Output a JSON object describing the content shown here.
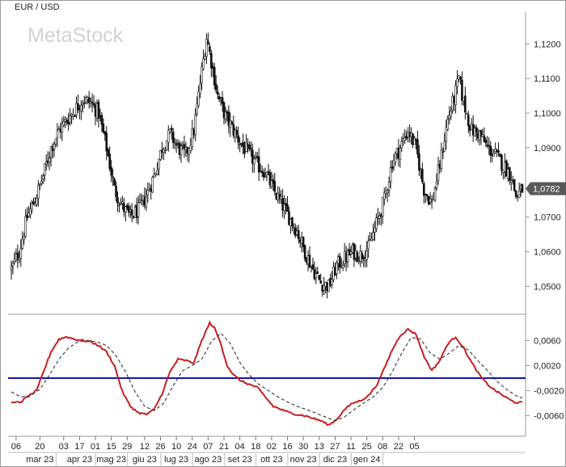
{
  "chart_data": [
    {
      "type": "candlestick",
      "title": "EUR / USD",
      "watermark": "MetaStock",
      "ylim": [
        1.0445,
        1.128
      ],
      "y_ticks": [
        {
          "value": 1.12,
          "label": "1,1200"
        },
        {
          "value": 1.11,
          "label": "1,1100"
        },
        {
          "value": 1.1,
          "label": "1,1000"
        },
        {
          "value": 1.09,
          "label": "1,0900"
        },
        {
          "value": 1.07,
          "label": "1,0700"
        },
        {
          "value": 1.06,
          "label": "1,0600"
        },
        {
          "value": 1.05,
          "label": "1,0500"
        }
      ],
      "last_price": {
        "value": 1.0782,
        "label": "1,0782",
        "color": "#5a5a5a"
      },
      "approx_close_path": [
        {
          "x": 0,
          "y": 1.055
        },
        {
          "x": 5,
          "y": 1.06
        },
        {
          "x": 10,
          "y": 1.07
        },
        {
          "x": 15,
          "y": 1.075
        },
        {
          "x": 20,
          "y": 1.082
        },
        {
          "x": 25,
          "y": 1.09
        },
        {
          "x": 30,
          "y": 1.095
        },
        {
          "x": 35,
          "y": 1.098
        },
        {
          "x": 40,
          "y": 1.101
        },
        {
          "x": 45,
          "y": 1.104
        },
        {
          "x": 50,
          "y": 1.103
        },
        {
          "x": 55,
          "y": 1.1
        },
        {
          "x": 60,
          "y": 1.09
        },
        {
          "x": 65,
          "y": 1.078
        },
        {
          "x": 70,
          "y": 1.073
        },
        {
          "x": 75,
          "y": 1.07
        },
        {
          "x": 80,
          "y": 1.072
        },
        {
          "x": 85,
          "y": 1.076
        },
        {
          "x": 90,
          "y": 1.082
        },
        {
          "x": 95,
          "y": 1.09
        },
        {
          "x": 100,
          "y": 1.094
        },
        {
          "x": 105,
          "y": 1.09
        },
        {
          "x": 110,
          "y": 1.088
        },
        {
          "x": 115,
          "y": 1.095
        },
        {
          "x": 120,
          "y": 1.112
        },
        {
          "x": 123,
          "y": 1.122
        },
        {
          "x": 126,
          "y": 1.115
        },
        {
          "x": 130,
          "y": 1.105
        },
        {
          "x": 135,
          "y": 1.099
        },
        {
          "x": 140,
          "y": 1.095
        },
        {
          "x": 145,
          "y": 1.091
        },
        {
          "x": 150,
          "y": 1.088
        },
        {
          "x": 155,
          "y": 1.085
        },
        {
          "x": 160,
          "y": 1.083
        },
        {
          "x": 165,
          "y": 1.078
        },
        {
          "x": 170,
          "y": 1.074
        },
        {
          "x": 175,
          "y": 1.07
        },
        {
          "x": 180,
          "y": 1.066
        },
        {
          "x": 185,
          "y": 1.06
        },
        {
          "x": 190,
          "y": 1.055
        },
        {
          "x": 195,
          "y": 1.051
        },
        {
          "x": 200,
          "y": 1.05
        },
        {
          "x": 205,
          "y": 1.056
        },
        {
          "x": 210,
          "y": 1.058
        },
        {
          "x": 215,
          "y": 1.06
        },
        {
          "x": 220,
          "y": 1.059
        },
        {
          "x": 225,
          "y": 1.061
        },
        {
          "x": 230,
          "y": 1.068
        },
        {
          "x": 235,
          "y": 1.075
        },
        {
          "x": 240,
          "y": 1.086
        },
        {
          "x": 245,
          "y": 1.09
        },
        {
          "x": 250,
          "y": 1.095
        },
        {
          "x": 255,
          "y": 1.09
        },
        {
          "x": 260,
          "y": 1.078
        },
        {
          "x": 265,
          "y": 1.074
        },
        {
          "x": 270,
          "y": 1.085
        },
        {
          "x": 275,
          "y": 1.098
        },
        {
          "x": 280,
          "y": 1.106
        },
        {
          "x": 282,
          "y": 1.11
        },
        {
          "x": 285,
          "y": 1.103
        },
        {
          "x": 290,
          "y": 1.095
        },
        {
          "x": 295,
          "y": 1.094
        },
        {
          "x": 300,
          "y": 1.09
        },
        {
          "x": 305,
          "y": 1.088
        },
        {
          "x": 310,
          "y": 1.085
        },
        {
          "x": 315,
          "y": 1.082
        },
        {
          "x": 318,
          "y": 1.076
        },
        {
          "x": 322,
          "y": 1.078
        }
      ]
    },
    {
      "type": "line",
      "y_ticks": [
        {
          "value": 0.006,
          "label": "0,0060"
        },
        {
          "value": 0.002,
          "label": "0,0020"
        },
        {
          "value": -0.002,
          "label": "-0,0020"
        },
        {
          "value": -0.006,
          "label": "-0,0060"
        }
      ],
      "ylim": [
        -0.0089,
        0.0098
      ],
      "zero_line": {
        "value": 0,
        "color": "#1414b4"
      },
      "series": [
        {
          "color": "#c81e1e",
          "style": "solid",
          "points": [
            {
              "x": 0,
              "y": -0.004
            },
            {
              "x": 6,
              "y": -0.0038
            },
            {
              "x": 10,
              "y": -0.003
            },
            {
              "x": 16,
              "y": -0.002
            },
            {
              "x": 20,
              "y": 0.0008
            },
            {
              "x": 25,
              "y": 0.0042
            },
            {
              "x": 30,
              "y": 0.0062
            },
            {
              "x": 35,
              "y": 0.0066
            },
            {
              "x": 40,
              "y": 0.0062
            },
            {
              "x": 45,
              "y": 0.006
            },
            {
              "x": 50,
              "y": 0.0058
            },
            {
              "x": 55,
              "y": 0.0052
            },
            {
              "x": 60,
              "y": 0.0042
            },
            {
              "x": 65,
              "y": 0.002
            },
            {
              "x": 70,
              "y": -0.0022
            },
            {
              "x": 75,
              "y": -0.0045
            },
            {
              "x": 80,
              "y": -0.0055
            },
            {
              "x": 85,
              "y": -0.0058
            },
            {
              "x": 90,
              "y": -0.005
            },
            {
              "x": 95,
              "y": -0.0025
            },
            {
              "x": 100,
              "y": 0.001
            },
            {
              "x": 105,
              "y": 0.003
            },
            {
              "x": 110,
              "y": 0.0028
            },
            {
              "x": 115,
              "y": 0.0024
            },
            {
              "x": 120,
              "y": 0.006
            },
            {
              "x": 125,
              "y": 0.0088
            },
            {
              "x": 128,
              "y": 0.008
            },
            {
              "x": 132,
              "y": 0.0055
            },
            {
              "x": 136,
              "y": 0.002
            },
            {
              "x": 140,
              "y": 0.0005
            },
            {
              "x": 145,
              "y": -0.0005
            },
            {
              "x": 150,
              "y": -0.001
            },
            {
              "x": 155,
              "y": -0.0015
            },
            {
              "x": 160,
              "y": -0.003
            },
            {
              "x": 165,
              "y": -0.0045
            },
            {
              "x": 170,
              "y": -0.005
            },
            {
              "x": 175,
              "y": -0.0055
            },
            {
              "x": 180,
              "y": -0.0058
            },
            {
              "x": 185,
              "y": -0.006
            },
            {
              "x": 190,
              "y": -0.0064
            },
            {
              "x": 195,
              "y": -0.0068
            },
            {
              "x": 200,
              "y": -0.0075
            },
            {
              "x": 205,
              "y": -0.0066
            },
            {
              "x": 210,
              "y": -0.005
            },
            {
              "x": 215,
              "y": -0.004
            },
            {
              "x": 220,
              "y": -0.0036
            },
            {
              "x": 225,
              "y": -0.0028
            },
            {
              "x": 230,
              "y": -0.0012
            },
            {
              "x": 235,
              "y": 0.0015
            },
            {
              "x": 240,
              "y": 0.0045
            },
            {
              "x": 245,
              "y": 0.0068
            },
            {
              "x": 250,
              "y": 0.0078
            },
            {
              "x": 255,
              "y": 0.007
            },
            {
              "x": 260,
              "y": 0.0035
            },
            {
              "x": 265,
              "y": 0.0012
            },
            {
              "x": 270,
              "y": 0.0028
            },
            {
              "x": 275,
              "y": 0.0055
            },
            {
              "x": 280,
              "y": 0.0066
            },
            {
              "x": 285,
              "y": 0.0048
            },
            {
              "x": 290,
              "y": 0.0025
            },
            {
              "x": 295,
              "y": 0.0005
            },
            {
              "x": 300,
              "y": -0.001
            },
            {
              "x": 305,
              "y": -0.002
            },
            {
              "x": 310,
              "y": -0.0028
            },
            {
              "x": 315,
              "y": -0.0036
            },
            {
              "x": 318,
              "y": -0.0039
            },
            {
              "x": 322,
              "y": -0.0039
            }
          ]
        },
        {
          "color": "#222222",
          "style": "dashed",
          "points": [
            {
              "x": 0,
              "y": -0.0022
            },
            {
              "x": 6,
              "y": -0.003
            },
            {
              "x": 12,
              "y": -0.0028
            },
            {
              "x": 18,
              "y": -0.0018
            },
            {
              "x": 24,
              "y": 0.0005
            },
            {
              "x": 30,
              "y": 0.003
            },
            {
              "x": 36,
              "y": 0.0048
            },
            {
              "x": 42,
              "y": 0.0058
            },
            {
              "x": 48,
              "y": 0.006
            },
            {
              "x": 54,
              "y": 0.0058
            },
            {
              "x": 60,
              "y": 0.0052
            },
            {
              "x": 66,
              "y": 0.0036
            },
            {
              "x": 72,
              "y": 0.001
            },
            {
              "x": 78,
              "y": -0.0022
            },
            {
              "x": 84,
              "y": -0.0045
            },
            {
              "x": 90,
              "y": -0.0052
            },
            {
              "x": 96,
              "y": -0.004
            },
            {
              "x": 102,
              "y": -0.0012
            },
            {
              "x": 108,
              "y": 0.0012
            },
            {
              "x": 114,
              "y": 0.002
            },
            {
              "x": 120,
              "y": 0.003
            },
            {
              "x": 126,
              "y": 0.0058
            },
            {
              "x": 132,
              "y": 0.0072
            },
            {
              "x": 138,
              "y": 0.0055
            },
            {
              "x": 144,
              "y": 0.0025
            },
            {
              "x": 150,
              "y": 0.0005
            },
            {
              "x": 156,
              "y": -0.001
            },
            {
              "x": 162,
              "y": -0.002
            },
            {
              "x": 168,
              "y": -0.003
            },
            {
              "x": 174,
              "y": -0.0038
            },
            {
              "x": 180,
              "y": -0.0045
            },
            {
              "x": 186,
              "y": -0.005
            },
            {
              "x": 192,
              "y": -0.0056
            },
            {
              "x": 198,
              "y": -0.0062
            },
            {
              "x": 204,
              "y": -0.0068
            },
            {
              "x": 210,
              "y": -0.0062
            },
            {
              "x": 216,
              "y": -0.005
            },
            {
              "x": 222,
              "y": -0.004
            },
            {
              "x": 228,
              "y": -0.003
            },
            {
              "x": 234,
              "y": -0.0015
            },
            {
              "x": 240,
              "y": 0.001
            },
            {
              "x": 246,
              "y": 0.004
            },
            {
              "x": 252,
              "y": 0.0065
            },
            {
              "x": 258,
              "y": 0.0062
            },
            {
              "x": 264,
              "y": 0.004
            },
            {
              "x": 270,
              "y": 0.003
            },
            {
              "x": 276,
              "y": 0.004
            },
            {
              "x": 282,
              "y": 0.0052
            },
            {
              "x": 288,
              "y": 0.0045
            },
            {
              "x": 294,
              "y": 0.0028
            },
            {
              "x": 300,
              "y": 0.0012
            },
            {
              "x": 306,
              "y": -0.0005
            },
            {
              "x": 312,
              "y": -0.0018
            },
            {
              "x": 318,
              "y": -0.0028
            },
            {
              "x": 322,
              "y": -0.0032
            }
          ]
        }
      ]
    }
  ],
  "x_axis": {
    "n_points": 323,
    "day_ticks": [
      {
        "x": 3,
        "label": "06"
      },
      {
        "x": 18,
        "label": "20"
      },
      {
        "x": 33,
        "label": "03"
      },
      {
        "x": 43,
        "label": "17"
      },
      {
        "x": 53,
        "label": "01"
      },
      {
        "x": 63,
        "label": "15"
      },
      {
        "x": 73,
        "label": "29"
      },
      {
        "x": 84,
        "label": "12"
      },
      {
        "x": 94,
        "label": "26"
      },
      {
        "x": 104,
        "label": "10"
      },
      {
        "x": 114,
        "label": "24"
      },
      {
        "x": 124,
        "label": "07"
      },
      {
        "x": 134,
        "label": "21"
      },
      {
        "x": 144,
        "label": "04"
      },
      {
        "x": 154,
        "label": "18"
      },
      {
        "x": 164,
        "label": "02"
      },
      {
        "x": 174,
        "label": "16"
      },
      {
        "x": 184,
        "label": "30"
      },
      {
        "x": 194,
        "label": "13"
      },
      {
        "x": 204,
        "label": "27"
      },
      {
        "x": 214,
        "label": "11"
      },
      {
        "x": 224,
        "label": "25"
      },
      {
        "x": 234,
        "label": "08"
      },
      {
        "x": 244,
        "label": "22"
      },
      {
        "x": 254,
        "label": "05"
      }
    ],
    "months": [
      {
        "x": 18,
        "label": "mar 23"
      },
      {
        "x": 43,
        "label": "apr 23"
      },
      {
        "x": 63,
        "label": "mag 23"
      },
      {
        "x": 84,
        "label": "giu 23"
      },
      {
        "x": 104,
        "label": "lug 23"
      },
      {
        "x": 124,
        "label": "ago 23"
      },
      {
        "x": 144,
        "label": "set 23"
      },
      {
        "x": 164,
        "label": "ott 23"
      },
      {
        "x": 184,
        "label": "nov 23"
      },
      {
        "x": 204,
        "label": "dic 23"
      },
      {
        "x": 224,
        "label": "gen 24"
      }
    ]
  }
}
